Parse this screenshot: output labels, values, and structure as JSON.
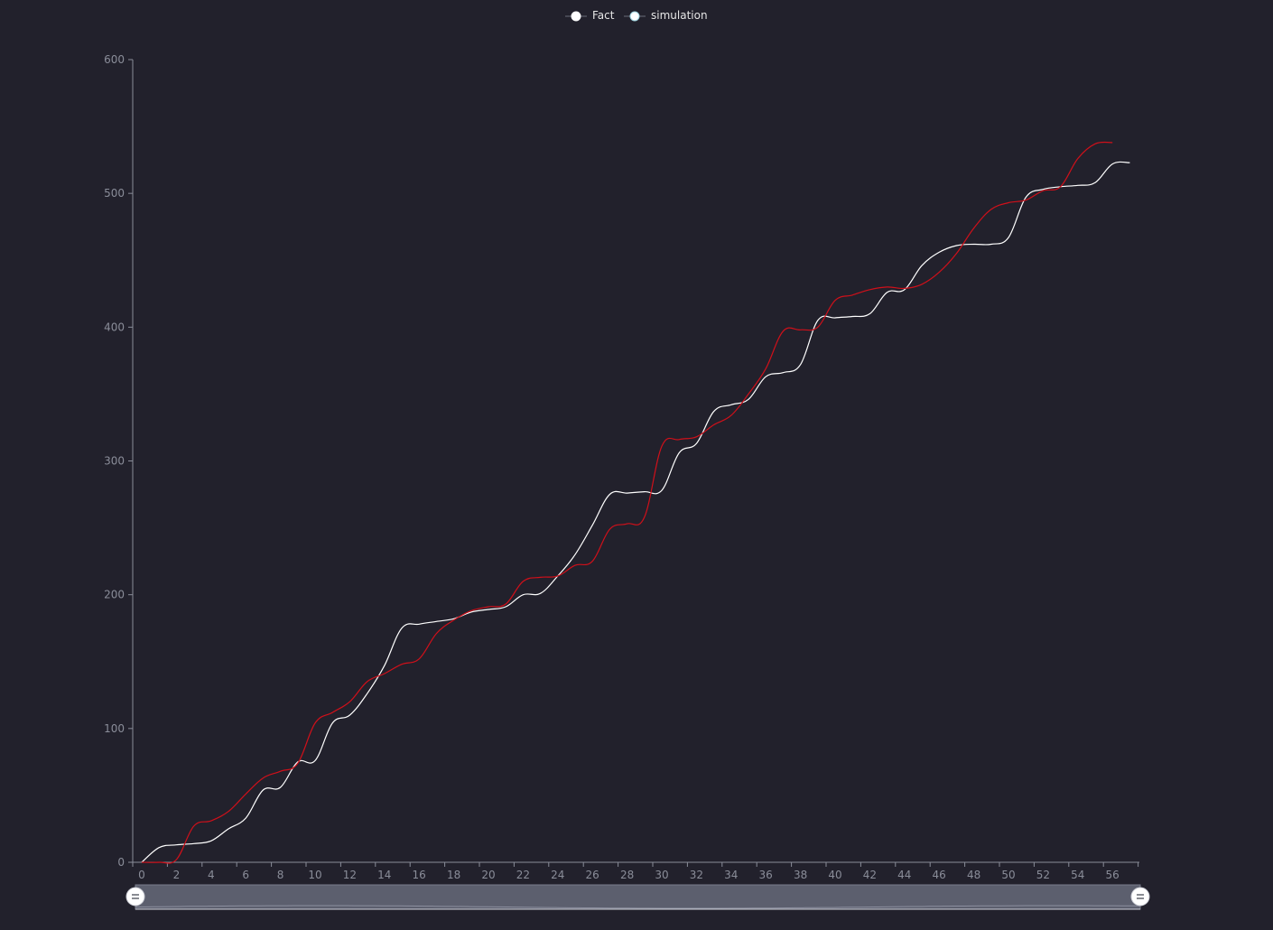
{
  "chart_data": {
    "type": "line",
    "title": "",
    "xlabel": "",
    "ylabel": "",
    "xlim": [
      0,
      58
    ],
    "ylim": [
      0,
      600
    ],
    "grid": false,
    "legend_position": "top-center",
    "x_ticks": [
      0,
      2,
      4,
      6,
      8,
      10,
      12,
      14,
      16,
      18,
      20,
      22,
      24,
      26,
      28,
      30,
      32,
      34,
      36,
      38,
      40,
      42,
      44,
      46,
      48,
      50,
      52,
      54,
      56
    ],
    "y_ticks": [
      0,
      100,
      200,
      300,
      400,
      500,
      600
    ],
    "series": [
      {
        "name": "Fact",
        "color": "#ffffff",
        "x": [
          0,
          1,
          2,
          3,
          4,
          5,
          6,
          7,
          8,
          9,
          10,
          11,
          12,
          13,
          14,
          15,
          16,
          17,
          18,
          19,
          20,
          21,
          22,
          23,
          24,
          25,
          26,
          27,
          28,
          29,
          30,
          31,
          32,
          33,
          34,
          35,
          36,
          37,
          38,
          39,
          40,
          41,
          42,
          43,
          44,
          45,
          46,
          47,
          48,
          49,
          50,
          51,
          52,
          53,
          54,
          55,
          56,
          57
        ],
        "values": [
          0,
          11,
          13,
          14,
          16,
          25,
          33,
          54,
          56,
          75,
          76,
          104,
          110,
          126,
          147,
          175,
          178,
          180,
          182,
          187,
          189,
          191,
          200,
          201,
          214,
          230,
          252,
          275,
          276,
          277,
          278,
          306,
          313,
          337,
          342,
          346,
          363,
          366,
          372,
          405,
          407,
          408,
          410,
          426,
          428,
          446,
          456,
          461,
          462,
          462,
          467,
          497,
          503,
          505,
          506,
          508,
          522,
          523
        ]
      },
      {
        "name": "simulation",
        "color": "#d0101a",
        "x": [
          0,
          1,
          2,
          3,
          4,
          5,
          6,
          7,
          8,
          9,
          10,
          11,
          12,
          13,
          14,
          15,
          16,
          17,
          18,
          19,
          20,
          21,
          22,
          23,
          24,
          25,
          26,
          27,
          28,
          29,
          30,
          31,
          32,
          33,
          34,
          35,
          36,
          37,
          38,
          39,
          40,
          41,
          42,
          43,
          44,
          45,
          46,
          47,
          48,
          49,
          50,
          51,
          52,
          53,
          54,
          55,
          56
        ],
        "values": [
          0,
          0,
          2,
          27,
          31,
          38,
          51,
          63,
          68,
          74,
          104,
          112,
          120,
          135,
          141,
          148,
          152,
          171,
          181,
          188,
          191,
          193,
          210,
          213,
          214,
          222,
          225,
          249,
          253,
          258,
          311,
          316,
          318,
          327,
          334,
          350,
          369,
          397,
          398,
          400,
          420,
          424,
          428,
          430,
          429,
          432,
          441,
          455,
          474,
          488,
          493,
          495,
          502,
          505,
          526,
          537,
          538
        ]
      }
    ]
  }
}
